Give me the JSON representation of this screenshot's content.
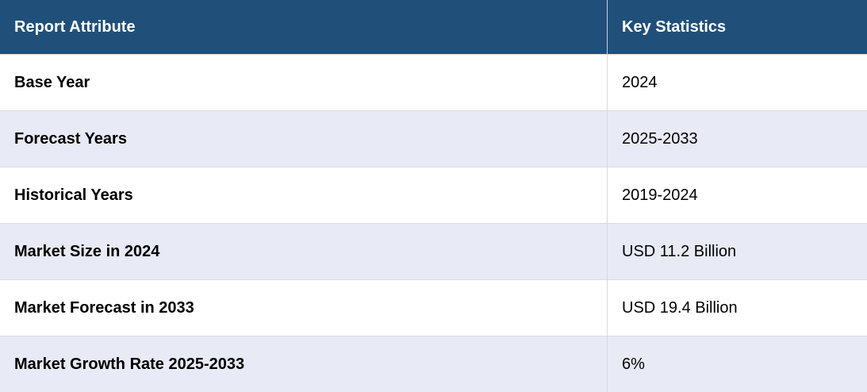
{
  "table": {
    "header": [
      "Report Attribute",
      "Key Statistics"
    ],
    "rows": [
      [
        "Base Year",
        "2024"
      ],
      [
        "Forecast Years",
        "2025-2033"
      ],
      [
        "Historical Years",
        "2019-2024"
      ],
      [
        "Market Size in 2024",
        "USD 11.2 Billion"
      ],
      [
        "Market Forecast in 2033",
        "USD 19.4 Billion"
      ],
      [
        "Market Growth Rate 2025-2033",
        "6%"
      ]
    ]
  }
}
